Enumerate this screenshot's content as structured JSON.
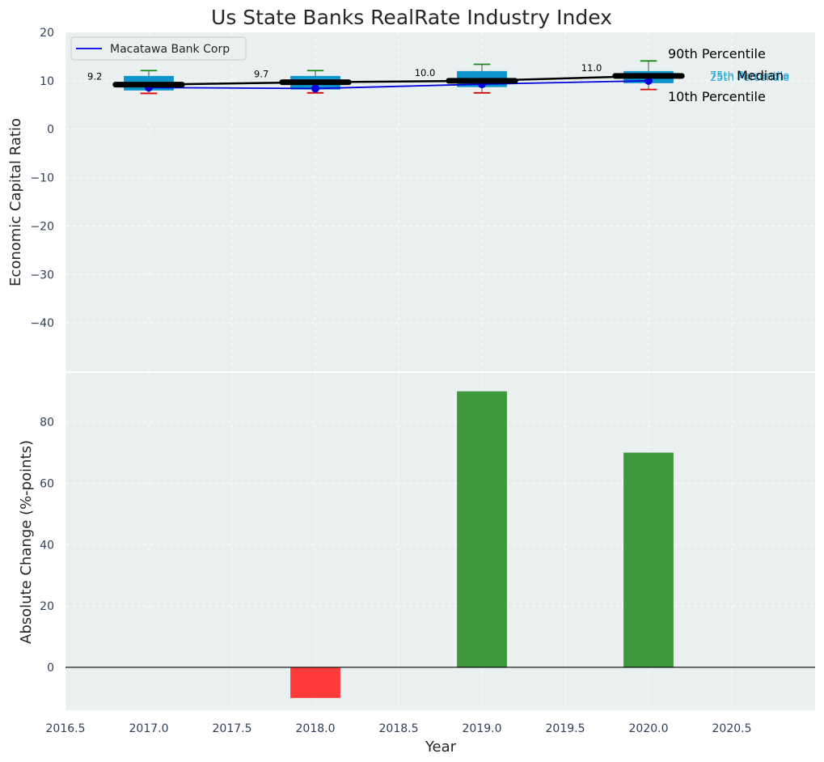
{
  "chart_data": [
    {
      "type": "box-line",
      "title": "Us State Banks RealRate Industry Index",
      "ylabel": "Economic Capital Ratio",
      "xlim": [
        2016.5,
        2021.0
      ],
      "ylim": [
        -50,
        20
      ],
      "yticks": [
        20,
        10,
        0,
        -10,
        -20,
        -30,
        -40
      ],
      "grid": true,
      "legend": {
        "location": "top-left",
        "entries": [
          "Macatawa Bank Corp"
        ]
      },
      "boxes": [
        {
          "x": 2017,
          "p10": 7.4,
          "q1": 8.0,
          "q3": 11.0,
          "p90": 12.1,
          "median": 9.2
        },
        {
          "x": 2018,
          "p10": 7.5,
          "q1": 8.2,
          "q3": 11.0,
          "p90": 12.1,
          "median": 9.7
        },
        {
          "x": 2019,
          "p10": 7.5,
          "q1": 8.7,
          "q3": 12.0,
          "p90": 13.4,
          "median": 10.0
        },
        {
          "x": 2020,
          "p10": 8.2,
          "q1": 9.5,
          "q3": 12.0,
          "p90": 14.1,
          "median": 11.0
        }
      ],
      "median_labels": [
        "9.2",
        "9.7",
        "10.0",
        "11.0"
      ],
      "series": [
        {
          "name": "Macatawa Bank Corp",
          "x": [
            2017,
            2018,
            2019,
            2020
          ],
          "values": [
            8.6,
            8.4,
            9.3,
            10.0
          ],
          "color": "#0000dd"
        }
      ],
      "annotations": {
        "p90": "90th Percentile",
        "p75": "75th Percentile",
        "median": "Median",
        "p25": "25th Percentile",
        "p10": "10th Percentile"
      }
    },
    {
      "type": "bar",
      "xlabel": "Year",
      "ylabel": "Absolute Change (%-points)",
      "xlim": [
        2016.5,
        2021.0
      ],
      "ylim": [
        -14,
        96
      ],
      "yticks": [
        80,
        60,
        40,
        20,
        0
      ],
      "xticks": [
        "2016.5",
        "2017.0",
        "2017.5",
        "2018.0",
        "2018.5",
        "2019.0",
        "2019.5",
        "2020.0",
        "2020.5"
      ],
      "x": [
        2018,
        2019,
        2020
      ],
      "values": [
        -10,
        90,
        70
      ],
      "colors": {
        "positive": "#3c9a3c",
        "negative": "#ff3b3b"
      }
    }
  ]
}
